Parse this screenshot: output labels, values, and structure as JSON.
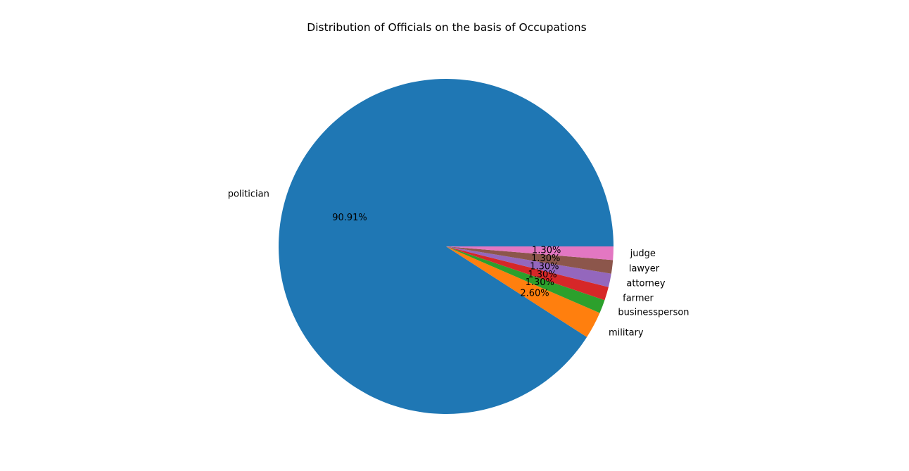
{
  "chart_data": {
    "type": "pie",
    "title": "Distribution of Officials on the basis of Occupations",
    "categories": [
      "politician",
      "military",
      "businessperson",
      "farmer",
      "attorney",
      "lawyer",
      "judge"
    ],
    "values": [
      90.91,
      2.6,
      1.3,
      1.3,
      1.3,
      1.3,
      1.3
    ],
    "percent_labels": [
      "90.91%",
      "2.60%",
      "1.30%",
      "1.30%",
      "1.30%",
      "1.30%",
      "1.30%"
    ],
    "colors": [
      "#1f77b4",
      "#ff7f0e",
      "#2ca02c",
      "#d62728",
      "#9467bd",
      "#8c564b",
      "#e377c2"
    ],
    "start_angle_deg": 0,
    "direction": "counterclockwise",
    "legend": "none"
  }
}
